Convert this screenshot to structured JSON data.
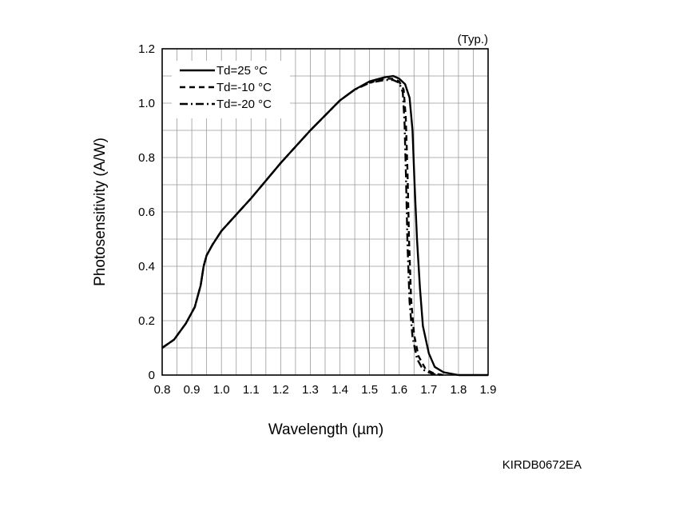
{
  "note": "(Typ.)",
  "figure_code": "KIRDB0672EA",
  "chart_data": {
    "type": "line",
    "xlabel": "Wavelength (µm)",
    "ylabel": "Photosensitivity (A/W)",
    "xlim": [
      0.8,
      1.9
    ],
    "ylim": [
      0,
      1.2
    ],
    "x_ticks": [
      "0.8",
      "0.9",
      "1.0",
      "1.1",
      "1.2",
      "1.3",
      "1.4",
      "1.5",
      "1.6",
      "1.7",
      "1.8",
      "1.9"
    ],
    "y_ticks": [
      "0",
      "0.2",
      "0.4",
      "0.6",
      "0.8",
      "1.0",
      "1.2"
    ],
    "grid": true,
    "legend_position": "top-left",
    "series": [
      {
        "name": "Td=25 °C",
        "style": "solid",
        "points": [
          [
            0.8,
            0.1
          ],
          [
            0.84,
            0.13
          ],
          [
            0.88,
            0.19
          ],
          [
            0.91,
            0.25
          ],
          [
            0.93,
            0.33
          ],
          [
            0.94,
            0.4
          ],
          [
            0.95,
            0.44
          ],
          [
            0.97,
            0.48
          ],
          [
            1.0,
            0.53
          ],
          [
            1.05,
            0.59
          ],
          [
            1.1,
            0.65
          ],
          [
            1.2,
            0.78
          ],
          [
            1.3,
            0.9
          ],
          [
            1.4,
            1.01
          ],
          [
            1.45,
            1.05
          ],
          [
            1.5,
            1.08
          ],
          [
            1.55,
            1.095
          ],
          [
            1.58,
            1.1
          ],
          [
            1.6,
            1.09
          ],
          [
            1.62,
            1.07
          ],
          [
            1.635,
            1.02
          ],
          [
            1.645,
            0.9
          ],
          [
            1.652,
            0.7
          ],
          [
            1.66,
            0.5
          ],
          [
            1.67,
            0.32
          ],
          [
            1.68,
            0.18
          ],
          [
            1.7,
            0.08
          ],
          [
            1.72,
            0.03
          ],
          [
            1.75,
            0.01
          ],
          [
            1.8,
            0.0
          ],
          [
            1.9,
            0.0
          ]
        ]
      },
      {
        "name": "Td=-10 °C",
        "style": "dashed",
        "points": [
          [
            0.8,
            0.1
          ],
          [
            0.84,
            0.13
          ],
          [
            0.88,
            0.19
          ],
          [
            0.91,
            0.25
          ],
          [
            0.93,
            0.33
          ],
          [
            0.94,
            0.4
          ],
          [
            0.95,
            0.44
          ],
          [
            0.97,
            0.48
          ],
          [
            1.0,
            0.53
          ],
          [
            1.05,
            0.59
          ],
          [
            1.1,
            0.65
          ],
          [
            1.2,
            0.78
          ],
          [
            1.3,
            0.9
          ],
          [
            1.4,
            1.01
          ],
          [
            1.45,
            1.05
          ],
          [
            1.5,
            1.075
          ],
          [
            1.55,
            1.09
          ],
          [
            1.58,
            1.09
          ],
          [
            1.6,
            1.08
          ],
          [
            1.615,
            1.05
          ],
          [
            1.622,
            0.95
          ],
          [
            1.628,
            0.75
          ],
          [
            1.633,
            0.5
          ],
          [
            1.64,
            0.28
          ],
          [
            1.65,
            0.15
          ],
          [
            1.665,
            0.07
          ],
          [
            1.69,
            0.02
          ],
          [
            1.72,
            0.005
          ],
          [
            1.75,
            0.0
          ]
        ]
      },
      {
        "name": "Td=-20 °C",
        "style": "dashdot",
        "points": [
          [
            0.8,
            0.1
          ],
          [
            0.84,
            0.13
          ],
          [
            0.88,
            0.19
          ],
          [
            0.91,
            0.25
          ],
          [
            0.93,
            0.33
          ],
          [
            0.94,
            0.4
          ],
          [
            0.95,
            0.44
          ],
          [
            0.97,
            0.48
          ],
          [
            1.0,
            0.53
          ],
          [
            1.05,
            0.59
          ],
          [
            1.1,
            0.65
          ],
          [
            1.2,
            0.78
          ],
          [
            1.3,
            0.9
          ],
          [
            1.4,
            1.01
          ],
          [
            1.45,
            1.05
          ],
          [
            1.5,
            1.075
          ],
          [
            1.55,
            1.085
          ],
          [
            1.58,
            1.085
          ],
          [
            1.6,
            1.075
          ],
          [
            1.612,
            1.04
          ],
          [
            1.618,
            0.93
          ],
          [
            1.623,
            0.72
          ],
          [
            1.628,
            0.48
          ],
          [
            1.635,
            0.27
          ],
          [
            1.645,
            0.14
          ],
          [
            1.66,
            0.06
          ],
          [
            1.68,
            0.02
          ],
          [
            1.71,
            0.005
          ],
          [
            1.74,
            0.0
          ]
        ]
      }
    ]
  }
}
